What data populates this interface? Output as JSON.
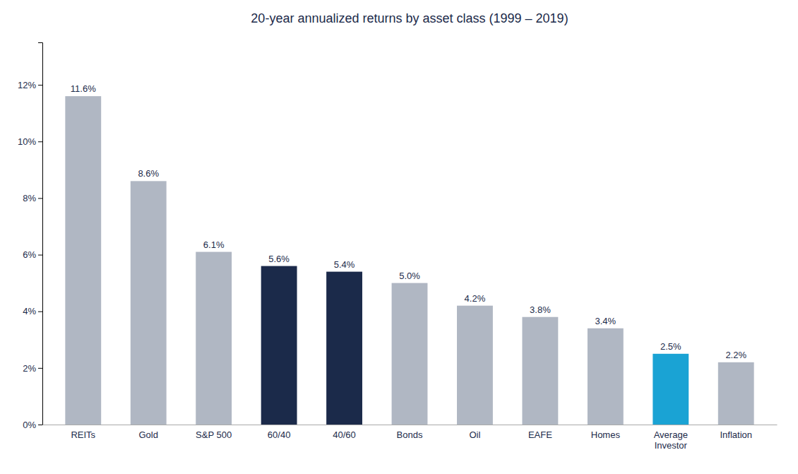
{
  "chart_data": {
    "type": "bar",
    "title": "20-year annualized returns by asset class (1999 – 2019)",
    "categories": [
      "REITs",
      "Gold",
      "S&P 500",
      "60/40",
      "40/60",
      "Bonds",
      "Oil",
      "EAFE",
      "Homes",
      "Average\nInvestor",
      "Inflation"
    ],
    "values": [
      11.6,
      8.6,
      6.1,
      5.6,
      5.4,
      5.0,
      4.2,
      3.8,
      3.4,
      2.5,
      2.2
    ],
    "value_labels": [
      "11.6%",
      "8.6%",
      "6.1%",
      "5.6%",
      "5.4%",
      "5.0%",
      "4.2%",
      "3.8%",
      "3.4%",
      "2.5%",
      "2.2%"
    ],
    "data_labels": true,
    "colors": [
      "#b0b7c3",
      "#b0b7c3",
      "#b0b7c3",
      "#1b2a4a",
      "#1b2a4a",
      "#b0b7c3",
      "#b0b7c3",
      "#b0b7c3",
      "#b0b7c3",
      "#1aa3d4",
      "#b0b7c3"
    ],
    "ylim": [
      0,
      13.5
    ],
    "yticks": [
      {
        "value": 0,
        "label": "0%"
      },
      {
        "value": 2,
        "label": "2%"
      },
      {
        "value": 4,
        "label": "4%"
      },
      {
        "value": 6,
        "label": "6%"
      },
      {
        "value": 8,
        "label": "8%"
      },
      {
        "value": 10,
        "label": "10%"
      },
      {
        "value": 12,
        "label": "12%"
      }
    ],
    "grid": false
  }
}
